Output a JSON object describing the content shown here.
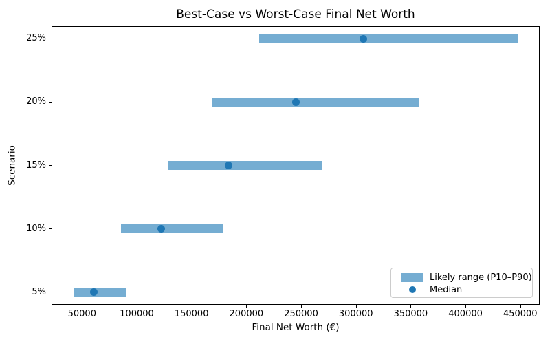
{
  "chart_data": {
    "type": "bar",
    "subtype": "horizontal-range-bars-with-median-dots",
    "title": "Best-Case vs Worst-Case Final Net Worth",
    "xlabel": "Final Net Worth (€)",
    "ylabel": "Scenario",
    "categories": [
      "5%",
      "10%",
      "15%",
      "20%",
      "25%"
    ],
    "series": [
      {
        "name": "Likely range (P10–P90)",
        "type": "range-bar",
        "color": "#75add2",
        "p10": [
          43000,
          85500,
          128000,
          169000,
          211500
        ],
        "p90": [
          90500,
          179000,
          269000,
          358000,
          447500
        ]
      },
      {
        "name": "Median",
        "type": "scatter",
        "color": "#1f77b4",
        "values": [
          61000,
          122500,
          183500,
          245000,
          306500
        ]
      }
    ],
    "xticks": [
      50000,
      100000,
      150000,
      200000,
      250000,
      300000,
      350000,
      400000,
      450000
    ],
    "xlim": [
      22200,
      467700
    ],
    "ylim": [
      -0.2,
      4.2
    ],
    "grid": false,
    "legend_position": "lower right"
  }
}
